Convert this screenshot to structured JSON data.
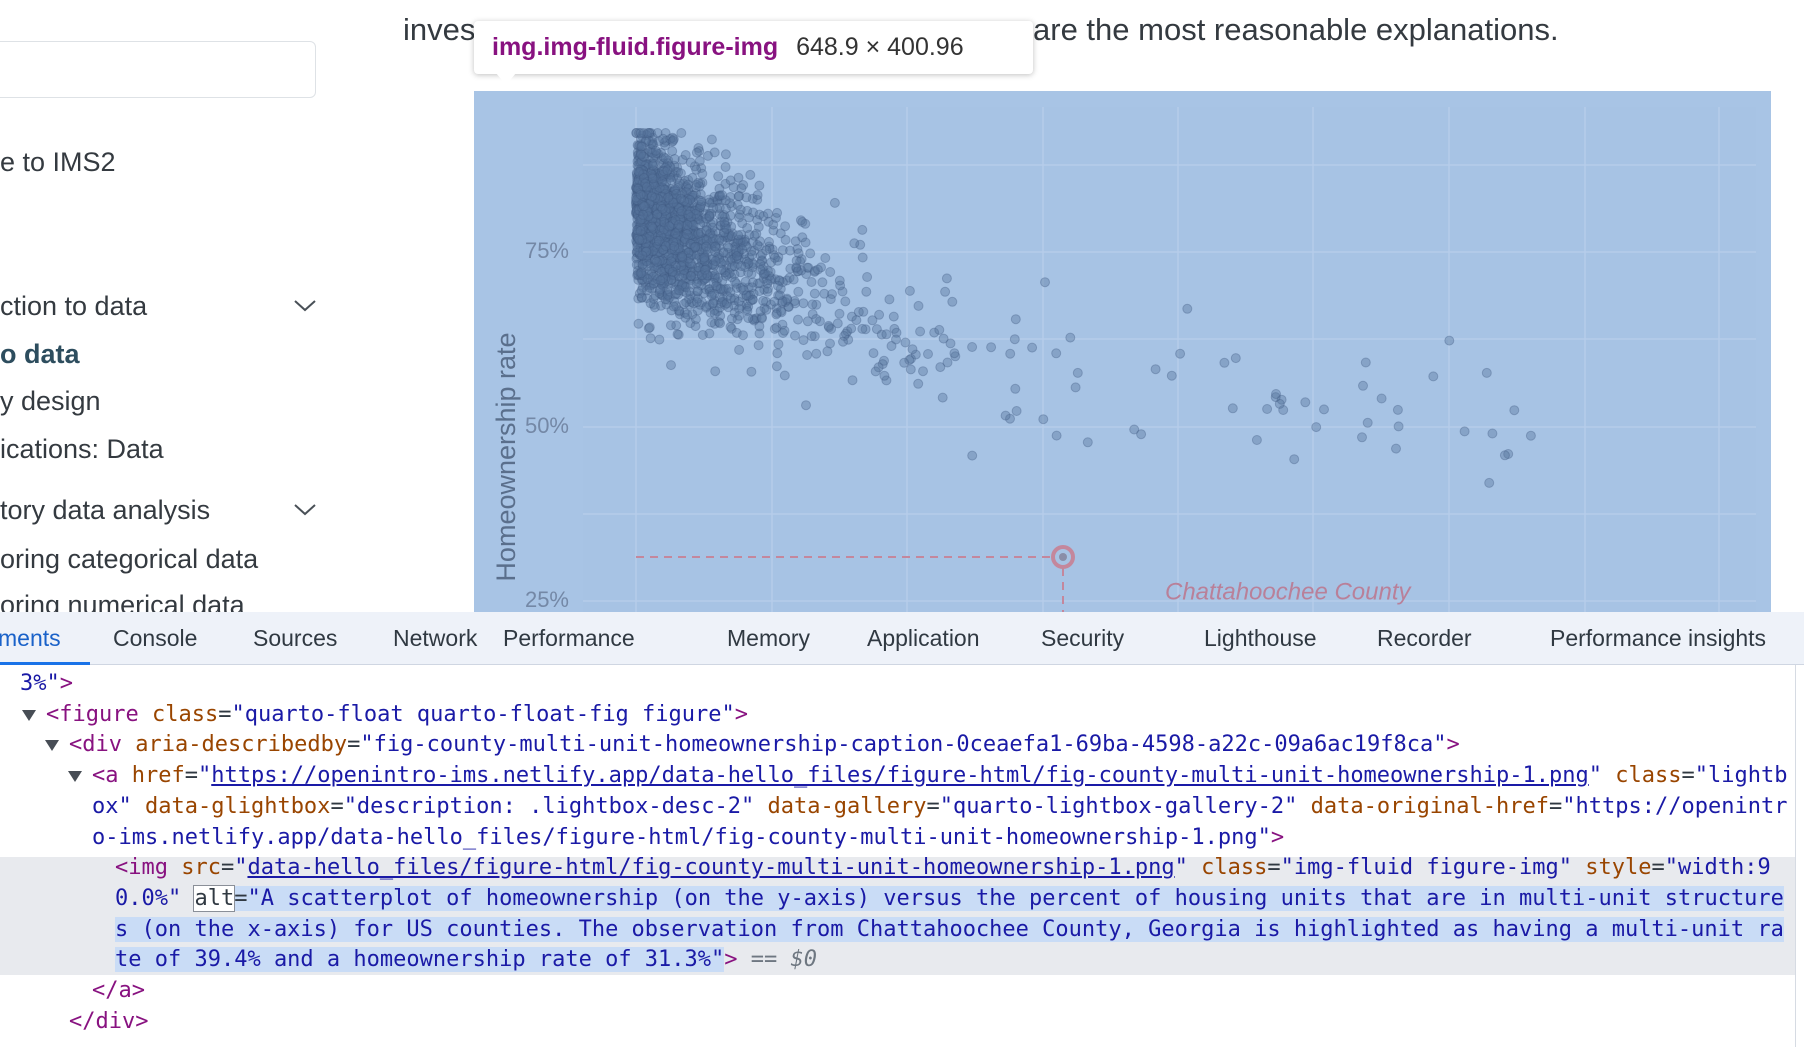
{
  "article": {
    "text_before": "inves",
    "text_after": "are the most reasonable explanations."
  },
  "sidebar": {
    "items": [
      "e to IMS2",
      "ction to data",
      "o data",
      "y design",
      "ications: Data",
      "tory data analysis",
      "oring categorical data",
      "oring numerical data"
    ]
  },
  "tooltip": {
    "tag": "img",
    "classes": ".img-fluid.figure-img",
    "size": "648.9 × 400.96"
  },
  "figure": {
    "y_label": "Homeownership rate",
    "y_ticks": [
      "75%",
      "50%",
      "25%"
    ],
    "annotation": "Chattahoochee County"
  },
  "devtools": {
    "tabs": [
      "ments",
      "Console",
      "Sources",
      "Network",
      "Performance",
      "Memory",
      "Application",
      "Security",
      "Lighthouse",
      "Recorder",
      "Performance insights"
    ],
    "dom_lines": [
      [
        {
          "k": "val",
          "t": "3%\""
        },
        {
          "k": "tag",
          "t": ">"
        }
      ],
      [
        {
          "k": "tag",
          "t": "<figure"
        },
        {
          "k": "attr",
          "t": " class"
        },
        {
          "k": "eq",
          "t": "="
        },
        {
          "k": "val",
          "t": "\"quarto-float quarto-float-fig figure\""
        },
        {
          "k": "tag",
          "t": ">"
        }
      ],
      [
        {
          "k": "tag",
          "t": "<div"
        },
        {
          "k": "attr",
          "t": " aria-describedby"
        },
        {
          "k": "eq",
          "t": "="
        },
        {
          "k": "val",
          "t": "\"fig-county-multi-unit-homeownership-caption-0ceaefa1-69ba-4598-a22c-09a6ac19f8ca\""
        },
        {
          "k": "tag",
          "t": ">"
        }
      ],
      [
        {
          "k": "tag",
          "t": "<a"
        },
        {
          "k": "attr",
          "t": " href"
        },
        {
          "k": "eq",
          "t": "="
        },
        {
          "k": "val",
          "t": "\""
        },
        {
          "k": "link",
          "t": "https://openintro-ims.netlify.app/data-hello_files/figure-html/fig-county-multi-unit-homeownership-1.png"
        },
        {
          "k": "val",
          "t": "\""
        },
        {
          "k": "attr",
          "t": " class"
        },
        {
          "k": "eq",
          "t": "="
        },
        {
          "k": "val",
          "t": "\"lightb"
        }
      ],
      [
        {
          "k": "val",
          "t": "ox\""
        },
        {
          "k": "attr",
          "t": " data-glightbox"
        },
        {
          "k": "eq",
          "t": "="
        },
        {
          "k": "val",
          "t": "\"description: .lightbox-desc-2\""
        },
        {
          "k": "attr",
          "t": " data-gallery"
        },
        {
          "k": "eq",
          "t": "="
        },
        {
          "k": "val",
          "t": "\"quarto-lightbox-gallery-2\""
        },
        {
          "k": "attr",
          "t": " data-original-href"
        },
        {
          "k": "eq",
          "t": "="
        },
        {
          "k": "val",
          "t": "\"https://openintr"
        }
      ],
      [
        {
          "k": "val",
          "t": "o-ims.netlify.app/data-hello_files/figure-html/fig-county-multi-unit-homeownership-1.png\""
        },
        {
          "k": "tag",
          "t": ">"
        }
      ],
      [
        {
          "k": "tag",
          "t": "<img"
        },
        {
          "k": "attr",
          "t": " src"
        },
        {
          "k": "eq",
          "t": "="
        },
        {
          "k": "val",
          "t": "\""
        },
        {
          "k": "link",
          "t": "data-hello_files/figure-html/fig-county-multi-unit-homeownership-1.png"
        },
        {
          "k": "val",
          "t": "\""
        },
        {
          "k": "attr",
          "t": " class"
        },
        {
          "k": "eq",
          "t": "="
        },
        {
          "k": "val",
          "t": "\"img-fluid figure-img\""
        },
        {
          "k": "attr",
          "t": " style"
        },
        {
          "k": "eq",
          "t": "="
        },
        {
          "k": "val",
          "t": "\"width:9"
        }
      ],
      [
        {
          "k": "val",
          "t": "0.0%\""
        },
        {
          "k": "eq",
          "t": " "
        },
        {
          "k": "attr-focus",
          "t": "alt"
        },
        {
          "k": "eq-sel",
          "t": "="
        },
        {
          "k": "val-sel",
          "t": "\"A scatterplot of homeownership (on the y-axis) versus the percent of housing units that are in multi-unit structure"
        }
      ],
      [
        {
          "k": "val-sel",
          "t": "s (on the x-axis) for US counties. The observation from Chattahoochee County, Georgia is highlighted as having a multi-unit ra"
        }
      ],
      [
        {
          "k": "val-sel",
          "t": "te of 39.4% and a homeownership rate of 31.3%\""
        },
        {
          "k": "tag",
          "t": ">"
        },
        {
          "k": "dim",
          "t": " == "
        },
        {
          "k": "dim-it",
          "t": "$0"
        }
      ],
      [
        {
          "k": "tag",
          "t": "</a>"
        }
      ],
      [
        {
          "k": "tag",
          "t": "</div>"
        }
      ]
    ]
  }
}
